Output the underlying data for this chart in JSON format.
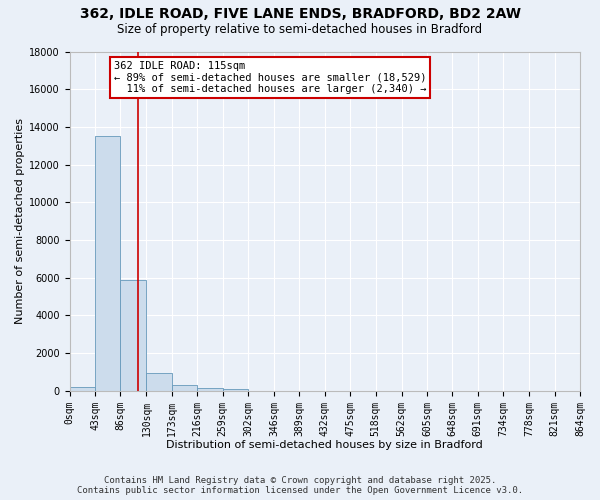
{
  "title_line1": "362, IDLE ROAD, FIVE LANE ENDS, BRADFORD, BD2 2AW",
  "title_line2": "Size of property relative to semi-detached houses in Bradford",
  "xlabel": "Distribution of semi-detached houses by size in Bradford",
  "ylabel": "Number of semi-detached properties",
  "bin_edges": [
    0,
    43,
    86,
    130,
    173,
    216,
    259,
    302,
    346,
    389,
    432,
    475,
    518,
    562,
    605,
    648,
    691,
    734,
    778,
    821,
    864
  ],
  "bar_heights": [
    200,
    13500,
    5900,
    950,
    310,
    170,
    110,
    0,
    0,
    0,
    0,
    0,
    0,
    0,
    0,
    0,
    0,
    0,
    0,
    0
  ],
  "bar_color": "#ccdcec",
  "bar_edge_color": "#6699bb",
  "property_size": 115,
  "vline_color": "#cc0000",
  "annotation_line1": "362 IDLE ROAD: 115sqm",
  "annotation_line2": "← 89% of semi-detached houses are smaller (18,529)",
  "annotation_line3": "  11% of semi-detached houses are larger (2,340) →",
  "annotation_box_color": "#ffffff",
  "annotation_border_color": "#cc0000",
  "ylim": [
    0,
    18000
  ],
  "yticks": [
    0,
    2000,
    4000,
    6000,
    8000,
    10000,
    12000,
    14000,
    16000,
    18000
  ],
  "background_color": "#eaf0f8",
  "grid_color": "#ffffff",
  "footer_line1": "Contains HM Land Registry data © Crown copyright and database right 2025.",
  "footer_line2": "Contains public sector information licensed under the Open Government Licence v3.0.",
  "title_fontsize": 10,
  "subtitle_fontsize": 8.5,
  "axis_label_fontsize": 8,
  "tick_fontsize": 7,
  "annotation_fontsize": 7.5,
  "footer_fontsize": 6.5
}
